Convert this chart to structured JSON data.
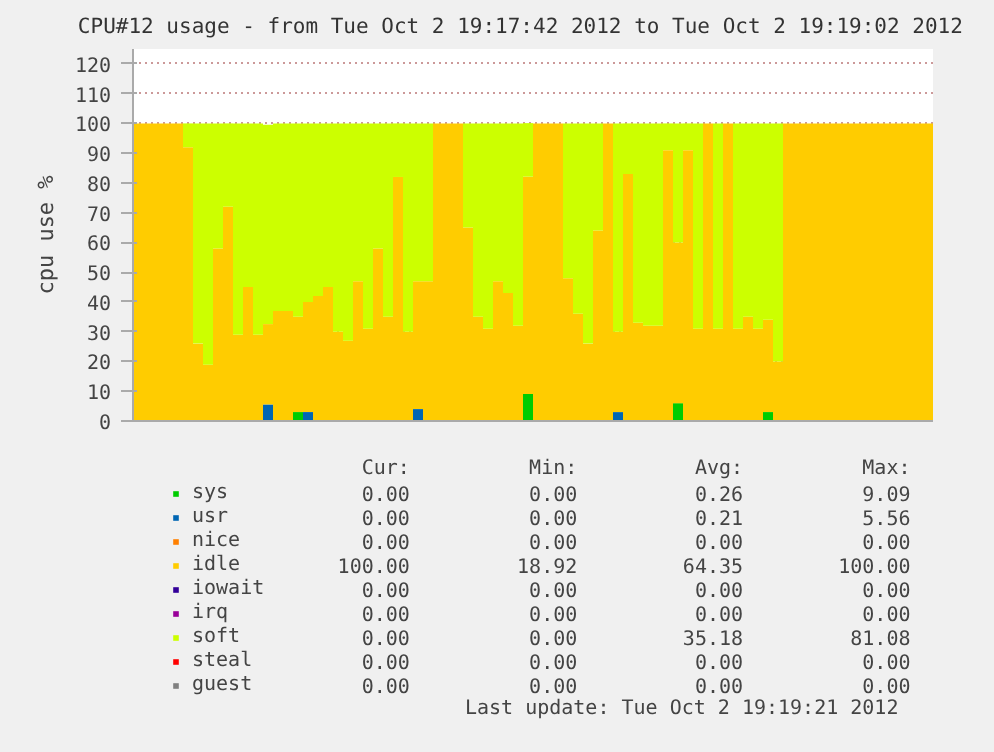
{
  "chart_data": {
    "type": "bar",
    "stacked": true,
    "title": "CPU#12 usage - from Tue Oct  2 19:17:42 2012 to Tue Oct  2 19:19:02 2012",
    "ylabel": "cpu use %",
    "categories": [
      null,
      null,
      null,
      null,
      null,
      null,
      null,
      null,
      null,
      null,
      null,
      null,
      null,
      null,
      null,
      null,
      null,
      null,
      null,
      null,
      null,
      null,
      null,
      null,
      null,
      null,
      null,
      null,
      null,
      null,
      null,
      null,
      null,
      null,
      null,
      null,
      null,
      null,
      null,
      null,
      null,
      null,
      null,
      null,
      null,
      null,
      null,
      null,
      null,
      null,
      null,
      null,
      null,
      null,
      null,
      null,
      null,
      null,
      null,
      null,
      null,
      null,
      null,
      null,
      null,
      null,
      null,
      null,
      null,
      null,
      null,
      null,
      null,
      null,
      null,
      null,
      null,
      null,
      null,
      null
    ],
    "series": [
      {
        "name": "sys",
        "color": "#00cc00",
        "values": [
          0,
          0,
          0,
          0,
          0,
          0,
          0,
          0,
          0,
          0,
          0,
          0,
          0,
          0,
          0,
          0,
          3,
          0,
          0,
          0,
          0,
          0,
          0,
          0,
          0,
          0,
          0,
          0,
          0,
          0,
          0,
          0,
          0,
          0,
          0,
          0,
          0,
          0,
          0,
          9.09,
          0,
          0,
          0,
          0,
          0,
          0,
          0,
          0,
          0,
          0,
          0,
          0,
          0,
          0,
          6,
          0,
          0,
          0,
          0,
          0,
          0,
          0,
          0,
          3,
          0,
          0,
          0,
          0,
          0,
          0,
          0,
          0,
          0,
          0,
          0,
          0,
          0,
          0,
          0,
          0
        ]
      },
      {
        "name": "usr",
        "color": "#0066b3",
        "values": [
          0,
          0,
          0,
          0,
          0,
          0,
          0,
          0,
          0,
          0,
          0,
          0,
          0,
          5.56,
          0,
          0,
          0,
          3,
          0,
          0,
          0,
          0,
          0,
          0,
          0,
          0,
          0,
          0,
          4,
          0,
          0,
          0,
          0,
          0,
          0,
          0,
          0,
          0,
          0,
          0,
          0,
          0,
          0,
          0,
          0,
          0,
          0,
          0,
          3,
          0,
          0,
          0,
          0,
          0,
          0,
          0,
          0,
          0,
          0,
          0,
          0,
          0,
          0,
          0,
          0,
          0,
          0,
          0,
          0,
          0,
          0,
          0,
          0,
          0,
          0,
          0,
          0,
          0,
          0,
          0
        ]
      },
      {
        "name": "nice",
        "color": "#ff8000",
        "values": [
          0,
          0,
          0,
          0,
          0,
          0,
          0,
          0,
          0,
          0,
          0,
          0,
          0,
          0,
          0,
          0,
          0,
          0,
          0,
          0,
          0,
          0,
          0,
          0,
          0,
          0,
          0,
          0,
          0,
          0,
          0,
          0,
          0,
          0,
          0,
          0,
          0,
          0,
          0,
          0,
          0,
          0,
          0,
          0,
          0,
          0,
          0,
          0,
          0,
          0,
          0,
          0,
          0,
          0,
          0,
          0,
          0,
          0,
          0,
          0,
          0,
          0,
          0,
          0,
          0,
          0,
          0,
          0,
          0,
          0,
          0,
          0,
          0,
          0,
          0,
          0,
          0,
          0,
          0,
          0
        ]
      },
      {
        "name": "idle",
        "color": "#ffcc00",
        "values": [
          100,
          100,
          100,
          100,
          100,
          92,
          26,
          18.92,
          58,
          72,
          29,
          45,
          29,
          27,
          37,
          37,
          32,
          37,
          42,
          45,
          30,
          27,
          47,
          31,
          58,
          35,
          82,
          30,
          43,
          47,
          100,
          100,
          100,
          65,
          35,
          31,
          47,
          43,
          32,
          73,
          100,
          100,
          100,
          48,
          36,
          26,
          64,
          100,
          27,
          83,
          33,
          32,
          32,
          91,
          54,
          91,
          31,
          100,
          31,
          100,
          31,
          35,
          31,
          31,
          20,
          100,
          100,
          100,
          100,
          100,
          100,
          100,
          100,
          100,
          100,
          100,
          100,
          100,
          100,
          100
        ]
      },
      {
        "name": "iowait",
        "color": "#330099",
        "values": [
          0,
          0,
          0,
          0,
          0,
          0,
          0,
          0,
          0,
          0,
          0,
          0,
          0,
          0,
          0,
          0,
          0,
          0,
          0,
          0,
          0,
          0,
          0,
          0,
          0,
          0,
          0,
          0,
          0,
          0,
          0,
          0,
          0,
          0,
          0,
          0,
          0,
          0,
          0,
          0,
          0,
          0,
          0,
          0,
          0,
          0,
          0,
          0,
          0,
          0,
          0,
          0,
          0,
          0,
          0,
          0,
          0,
          0,
          0,
          0,
          0,
          0,
          0,
          0,
          0,
          0,
          0,
          0,
          0,
          0,
          0,
          0,
          0,
          0,
          0,
          0,
          0,
          0,
          0,
          0
        ]
      },
      {
        "name": "irq",
        "color": "#990099",
        "values": [
          0,
          0,
          0,
          0,
          0,
          0,
          0,
          0,
          0,
          0,
          0,
          0,
          0,
          0,
          0,
          0,
          0,
          0,
          0,
          0,
          0,
          0,
          0,
          0,
          0,
          0,
          0,
          0,
          0,
          0,
          0,
          0,
          0,
          0,
          0,
          0,
          0,
          0,
          0,
          0,
          0,
          0,
          0,
          0,
          0,
          0,
          0,
          0,
          0,
          0,
          0,
          0,
          0,
          0,
          0,
          0,
          0,
          0,
          0,
          0,
          0,
          0,
          0,
          0,
          0,
          0,
          0,
          0,
          0,
          0,
          0,
          0,
          0,
          0,
          0,
          0,
          0,
          0,
          0,
          0
        ]
      },
      {
        "name": "soft",
        "color": "#ccff00",
        "values": [
          0,
          0,
          0,
          0,
          0,
          8,
          74,
          81.08,
          42,
          28,
          71,
          55,
          71,
          67,
          63,
          63,
          65,
          60,
          58,
          55,
          70,
          73,
          53,
          69,
          42,
          65,
          18,
          70,
          53,
          53,
          0,
          0,
          0,
          35,
          65,
          69,
          53,
          57,
          68,
          18,
          0,
          0,
          0,
          52,
          64,
          74,
          36,
          0,
          70,
          17,
          67,
          68,
          68,
          9,
          40,
          9,
          69,
          0,
          69,
          0,
          69,
          65,
          69,
          66,
          80,
          0,
          0,
          0,
          0,
          0,
          0,
          0,
          0,
          0,
          0,
          0,
          0,
          0,
          0,
          0
        ]
      },
      {
        "name": "steal",
        "color": "#ff0000",
        "values": [
          0,
          0,
          0,
          0,
          0,
          0,
          0,
          0,
          0,
          0,
          0,
          0,
          0,
          0,
          0,
          0,
          0,
          0,
          0,
          0,
          0,
          0,
          0,
          0,
          0,
          0,
          0,
          0,
          0,
          0,
          0,
          0,
          0,
          0,
          0,
          0,
          0,
          0,
          0,
          0,
          0,
          0,
          0,
          0,
          0,
          0,
          0,
          0,
          0,
          0,
          0,
          0,
          0,
          0,
          0,
          0,
          0,
          0,
          0,
          0,
          0,
          0,
          0,
          0,
          0,
          0,
          0,
          0,
          0,
          0,
          0,
          0,
          0,
          0,
          0,
          0,
          0,
          0,
          0,
          0
        ]
      },
      {
        "name": "guest",
        "color": "#808080",
        "values": [
          0,
          0,
          0,
          0,
          0,
          0,
          0,
          0,
          0,
          0,
          0,
          0,
          0,
          0,
          0,
          0,
          0,
          0,
          0,
          0,
          0,
          0,
          0,
          0,
          0,
          0,
          0,
          0,
          0,
          0,
          0,
          0,
          0,
          0,
          0,
          0,
          0,
          0,
          0,
          0,
          0,
          0,
          0,
          0,
          0,
          0,
          0,
          0,
          0,
          0,
          0,
          0,
          0,
          0,
          0,
          0,
          0,
          0,
          0,
          0,
          0,
          0,
          0,
          0,
          0,
          0,
          0,
          0,
          0,
          0,
          0,
          0,
          0,
          0,
          0,
          0,
          0,
          0,
          0,
          0
        ]
      }
    ],
    "ylim": [
      0,
      125
    ],
    "yticks": [
      0,
      10,
      20,
      30,
      40,
      50,
      60,
      70,
      80,
      90,
      100,
      110,
      120
    ],
    "grid": "y",
    "legend": "bottom",
    "annotations": [
      "Cur:",
      "Min:",
      "Avg:",
      "Max:",
      "0.00",
      "0.00",
      "0.26",
      "9.09",
      "0.00",
      "0.00",
      "0.21",
      "5.56",
      "0.00",
      "0.00",
      "0.00",
      "0.00",
      "100.00",
      "18.92",
      "64.35",
      "100.00",
      "0.00",
      "0.00",
      "0.00",
      "0.00",
      "0.00",
      "0.00",
      "0.00",
      "0.00",
      "0.00",
      "0.00",
      "35.18",
      "81.08",
      "0.00",
      "0.00",
      "0.00",
      "0.00",
      "0.00",
      "0.00",
      "0.00",
      "0.00",
      "Last update: Tue Oct  2 19:19:21 2012"
    ]
  }
}
